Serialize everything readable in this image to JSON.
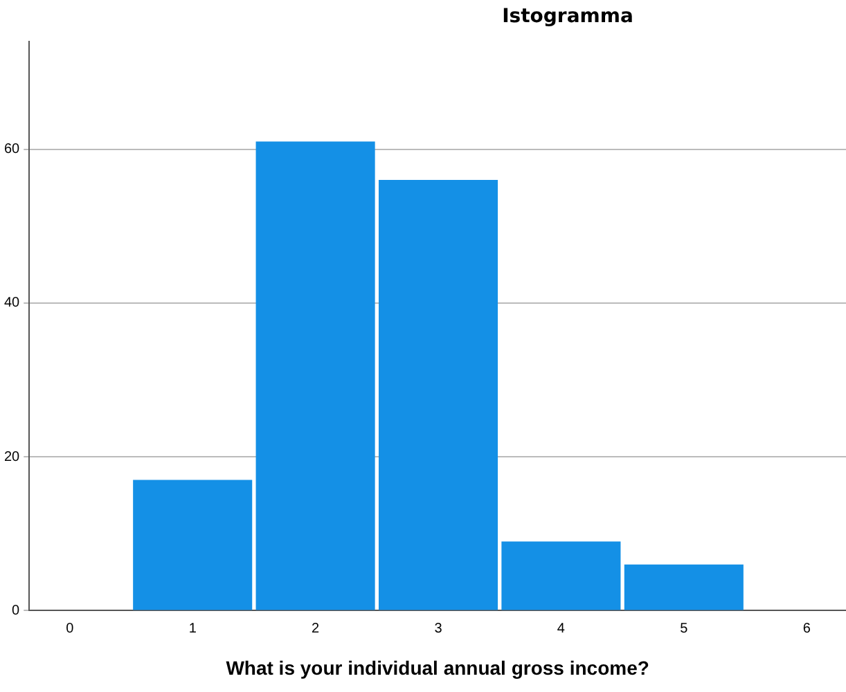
{
  "chart_data": {
    "type": "histogram",
    "title": "Istogramma",
    "xlabel": "What is your individual annual gross income?",
    "bins": [
      0.5,
      1.5,
      2.5,
      3.5,
      4.5,
      5.5
    ],
    "values": [
      17,
      61,
      56,
      9,
      6
    ],
    "color": "#1490e6",
    "xlim": [
      -0.33,
      6.32
    ],
    "xticks": [
      0,
      1,
      2,
      3,
      4,
      5,
      6
    ],
    "ylim": [
      0,
      74
    ],
    "yticks": [
      0,
      20,
      40,
      60
    ],
    "grid": "y",
    "legend": false
  }
}
